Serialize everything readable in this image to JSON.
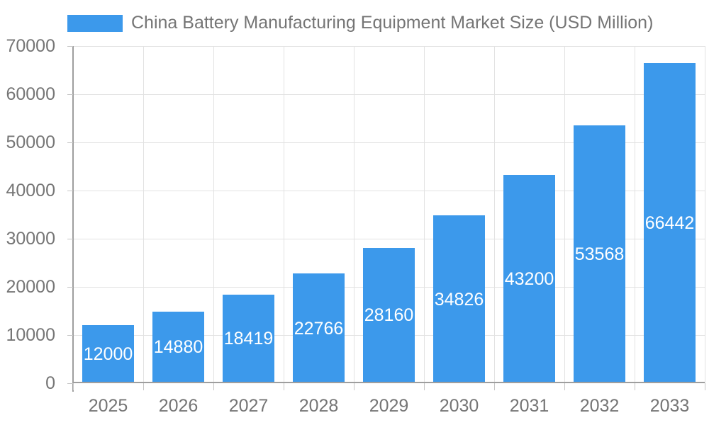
{
  "legend": {
    "label": "China Battery Manufacturing Equipment Market Size (USD Million)"
  },
  "chart_data": {
    "type": "bar",
    "title": "China Battery Manufacturing Equipment Market Size (USD Million)",
    "categories": [
      "2025",
      "2026",
      "2027",
      "2028",
      "2029",
      "2030",
      "2031",
      "2032",
      "2033"
    ],
    "values": [
      12000,
      14880,
      18419,
      22766,
      28160,
      34826,
      43200,
      53568,
      66442
    ],
    "xlabel": "",
    "ylabel": "",
    "ylim": [
      0,
      70000
    ],
    "yticks": [
      0,
      10000,
      20000,
      30000,
      40000,
      50000,
      60000,
      70000
    ],
    "grid": true,
    "legend_position": "top-left",
    "value_labels": "inside-center",
    "colors": {
      "bar": "#3c99eb",
      "grid": "#e2e2e2",
      "axis": "#9e9e9e",
      "tick": "#c6c6c6",
      "text": "#757575",
      "value_label": "#ffffff",
      "background": "#ffffff"
    }
  }
}
